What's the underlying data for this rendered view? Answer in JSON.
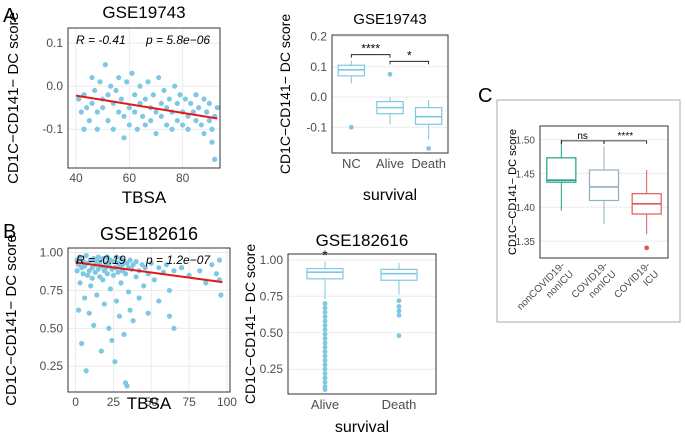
{
  "panel_labels": {
    "a": "A",
    "b": "B",
    "c": "C"
  },
  "colors": {
    "point": "#7EC8E3",
    "fit": "#E0191B",
    "grid": "#EBEBEB",
    "axis": "#333333",
    "box_blue": "#7EC8E3",
    "box_green": "#1FA187",
    "box_gray": "#8FB0C0",
    "box_red": "#E15759"
  },
  "chart_data": [
    {
      "id": "A1",
      "type": "scatter",
      "title": "GSE19743",
      "xlabel": "TBSA",
      "ylabel": "CD1C−CD141− DC score",
      "xlim": [
        37,
        94
      ],
      "ylim": [
        -0.19,
        0.135
      ],
      "xticks": [
        40,
        60,
        80
      ],
      "yticks": [
        -0.1,
        0.0,
        0.1
      ],
      "xtick_labels": [
        "40",
        "60",
        "80"
      ],
      "ytick_labels": [
        "-0.1",
        "0.0",
        "0.1"
      ],
      "stat_r": "R = -0.41",
      "stat_p": "p = 5.8e−06",
      "fit": {
        "x": [
          40,
          93
        ],
        "y": [
          -0.022,
          -0.075
        ]
      },
      "points": [
        [
          41,
          -0.03
        ],
        [
          42,
          -0.06
        ],
        [
          43,
          -0.1
        ],
        [
          43,
          -0.02
        ],
        [
          44,
          -0.05
        ],
        [
          45,
          -0.08
        ],
        [
          46,
          0.02
        ],
        [
          46,
          -0.04
        ],
        [
          47,
          -0.01
        ],
        [
          48,
          -0.06
        ],
        [
          48,
          -0.1
        ],
        [
          49,
          0.01
        ],
        [
          50,
          -0.03
        ],
        [
          50,
          -0.05
        ],
        [
          51,
          0.05
        ],
        [
          52,
          -0.02
        ],
        [
          52,
          -0.08
        ],
        [
          53,
          0.0
        ],
        [
          54,
          -0.04
        ],
        [
          54,
          -0.1
        ],
        [
          55,
          -0.01
        ],
        [
          56,
          0.02
        ],
        [
          56,
          -0.06
        ],
        [
          57,
          -0.03
        ],
        [
          58,
          -0.07
        ],
        [
          58,
          -0.12
        ],
        [
          59,
          0.01
        ],
        [
          60,
          -0.05
        ],
        [
          60,
          -0.09
        ],
        [
          61,
          0.03
        ],
        [
          62,
          -0.02
        ],
        [
          62,
          -0.06
        ],
        [
          63,
          -0.1
        ],
        [
          64,
          0.0
        ],
        [
          64,
          -0.04
        ],
        [
          65,
          -0.07
        ],
        [
          66,
          -0.03
        ],
        [
          66,
          -0.09
        ],
        [
          67,
          0.01
        ],
        [
          68,
          -0.05
        ],
        [
          68,
          -0.08
        ],
        [
          69,
          -0.02
        ],
        [
          70,
          -0.06
        ],
        [
          70,
          -0.11
        ],
        [
          71,
          0.02
        ],
        [
          72,
          -0.04
        ],
        [
          72,
          -0.07
        ],
        [
          73,
          -0.01
        ],
        [
          74,
          -0.05
        ],
        [
          74,
          -0.09
        ],
        [
          75,
          -0.03
        ],
        [
          76,
          -0.06
        ],
        [
          76,
          -0.1
        ],
        [
          77,
          0.0
        ],
        [
          78,
          -0.04
        ],
        [
          78,
          -0.08
        ],
        [
          79,
          -0.02
        ],
        [
          80,
          -0.06
        ],
        [
          80,
          -0.09
        ],
        [
          81,
          -0.03
        ],
        [
          82,
          -0.07
        ],
        [
          82,
          -0.1
        ],
        [
          83,
          -0.04
        ],
        [
          84,
          -0.06
        ],
        [
          85,
          -0.02
        ],
        [
          85,
          -0.08
        ],
        [
          86,
          -0.05
        ],
        [
          87,
          -0.09
        ],
        [
          88,
          -0.03
        ],
        [
          88,
          -0.11
        ],
        [
          89,
          -0.06
        ],
        [
          90,
          -0.08
        ],
        [
          90,
          -0.04
        ],
        [
          91,
          -0.1
        ],
        [
          91,
          -0.13
        ],
        [
          92,
          -0.07
        ],
        [
          92,
          -0.17
        ],
        [
          93,
          -0.05
        ]
      ]
    },
    {
      "id": "A2",
      "type": "box",
      "title": "GSE19743",
      "xlabel": "survival",
      "ylabel": "CD1C−CD141− DC score",
      "ylim": [
        -0.185,
        0.205
      ],
      "yticks": [
        -0.1,
        0.0,
        0.1,
        0.2
      ],
      "ytick_labels": [
        "-0.1",
        "0.0",
        "0.1",
        "0.2"
      ],
      "categories": [
        "NC",
        "Alive",
        "Death"
      ],
      "boxes": [
        {
          "min": 0.045,
          "q1": 0.07,
          "median": 0.09,
          "q3": 0.105,
          "max": 0.12,
          "outliers": [
            -0.1
          ]
        },
        {
          "min": -0.09,
          "q1": -0.055,
          "median": -0.035,
          "q3": -0.015,
          "max": 0.0,
          "outliers": [
            0.075
          ]
        },
        {
          "min": -0.14,
          "q1": -0.09,
          "median": -0.065,
          "q3": -0.035,
          "max": -0.01,
          "outliers": [
            -0.17
          ]
        }
      ],
      "brackets": [
        {
          "from": 0,
          "to": 1,
          "y": 0.14,
          "label": "****"
        },
        {
          "from": 1,
          "to": 2,
          "y": 0.118,
          "label": "*"
        }
      ]
    },
    {
      "id": "B1",
      "type": "scatter",
      "title": "GSE182616",
      "xlabel": "TBSA",
      "ylabel": "CD1C−CD141− DC score",
      "xlim": [
        -5,
        102
      ],
      "ylim": [
        0.08,
        1.03
      ],
      "xticks": [
        0,
        25,
        50,
        75,
        100
      ],
      "yticks": [
        0.25,
        0.5,
        0.75,
        1.0
      ],
      "xtick_labels": [
        "0",
        "25",
        "50",
        "75",
        "100"
      ],
      "ytick_labels": [
        "0.25",
        "0.50",
        "0.75",
        "1.00"
      ],
      "stat_r": "R = -0.19",
      "stat_p": "p = 1.2e−07",
      "fit": {
        "x": [
          0,
          97
        ],
        "y": [
          0.935,
          0.805
        ]
      },
      "points": [
        [
          1,
          0.95
        ],
        [
          1,
          0.88
        ],
        [
          2,
          0.92
        ],
        [
          2,
          0.62
        ],
        [
          3,
          0.97
        ],
        [
          3,
          0.8
        ],
        [
          4,
          0.9
        ],
        [
          4,
          0.4
        ],
        [
          5,
          0.86
        ],
        [
          5,
          0.94
        ],
        [
          6,
          0.91
        ],
        [
          6,
          0.7
        ],
        [
          7,
          0.98
        ],
        [
          7,
          0.22
        ],
        [
          8,
          0.85
        ],
        [
          8,
          0.93
        ],
        [
          9,
          0.88
        ],
        [
          9,
          0.6
        ],
        [
          10,
          0.95
        ],
        [
          10,
          0.78
        ],
        [
          11,
          0.9
        ],
        [
          11,
          0.83
        ],
        [
          12,
          0.96
        ],
        [
          12,
          0.52
        ],
        [
          13,
          0.87
        ],
        [
          13,
          0.92
        ],
        [
          14,
          0.94
        ],
        [
          14,
          0.72
        ],
        [
          15,
          0.89
        ],
        [
          15,
          0.97
        ],
        [
          16,
          0.84
        ],
        [
          16,
          0.93
        ],
        [
          17,
          0.91
        ],
        [
          17,
          0.35
        ],
        [
          18,
          0.96
        ],
        [
          18,
          0.82
        ],
        [
          19,
          0.88
        ],
        [
          19,
          0.66
        ],
        [
          20,
          0.93
        ],
        [
          20,
          0.9
        ],
        [
          21,
          0.86
        ],
        [
          21,
          0.97
        ],
        [
          22,
          0.92
        ],
        [
          22,
          0.5
        ],
        [
          23,
          0.95
        ],
        [
          23,
          0.76
        ],
        [
          24,
          0.89
        ],
        [
          24,
          0.42
        ],
        [
          25,
          0.94
        ],
        [
          25,
          0.85
        ],
        [
          26,
          0.9
        ],
        [
          26,
          0.28
        ],
        [
          27,
          0.97
        ],
        [
          27,
          0.68
        ],
        [
          28,
          0.87
        ],
        [
          28,
          0.93
        ],
        [
          29,
          0.91
        ],
        [
          29,
          0.58
        ],
        [
          30,
          0.96
        ],
        [
          30,
          0.8
        ],
        [
          31,
          0.88
        ],
        [
          31,
          0.92
        ],
        [
          32,
          0.94
        ],
        [
          32,
          0.46
        ],
        [
          33,
          0.86
        ],
        [
          33,
          0.14
        ],
        [
          34,
          0.93
        ],
        [
          34,
          0.12
        ],
        [
          35,
          0.9
        ],
        [
          35,
          0.74
        ],
        [
          36,
          0.95
        ],
        [
          36,
          0.62
        ],
        [
          37,
          0.89
        ],
        [
          38,
          0.92
        ],
        [
          38,
          0.55
        ],
        [
          40,
          0.94
        ],
        [
          40,
          0.84
        ],
        [
          42,
          0.88
        ],
        [
          42,
          0.7
        ],
        [
          44,
          0.92
        ],
        [
          45,
          0.78
        ],
        [
          46,
          0.9
        ],
        [
          48,
          0.86
        ],
        [
          48,
          0.6
        ],
        [
          50,
          0.93
        ],
        [
          52,
          0.82
        ],
        [
          55,
          0.9
        ],
        [
          55,
          0.68
        ],
        [
          58,
          0.87
        ],
        [
          60,
          0.92
        ],
        [
          62,
          0.75
        ],
        [
          62,
          0.58
        ],
        [
          65,
          0.88
        ],
        [
          65,
          0.5
        ],
        [
          70,
          0.9
        ],
        [
          75,
          0.85
        ],
        [
          82,
          0.88
        ],
        [
          86,
          0.8
        ],
        [
          90,
          0.92
        ],
        [
          93,
          0.86
        ],
        [
          95,
          0.95
        ],
        [
          95,
          0.82
        ],
        [
          96,
          0.72
        ]
      ]
    },
    {
      "id": "B2",
      "type": "box",
      "title": "GSE182616",
      "xlabel": "survival",
      "ylabel": "CD1C−CD141− DC score",
      "ylim": [
        0.08,
        1.04
      ],
      "yticks": [
        0.25,
        0.5,
        0.75,
        1.0
      ],
      "ytick_labels": [
        "0.25",
        "0.50",
        "0.75",
        "1.00"
      ],
      "categories": [
        "Alive",
        "Death"
      ],
      "boxes": [
        {
          "min": 0.73,
          "q1": 0.87,
          "median": 0.915,
          "q3": 0.94,
          "max": 0.99,
          "outliers": [
            0.7,
            0.67,
            0.64,
            0.61,
            0.58,
            0.55,
            0.52,
            0.49,
            0.46,
            0.43,
            0.4,
            0.37,
            0.34,
            0.31,
            0.28,
            0.25,
            0.22,
            0.19,
            0.16,
            0.13,
            0.11
          ]
        },
        {
          "min": 0.76,
          "q1": 0.86,
          "median": 0.905,
          "q3": 0.935,
          "max": 0.98,
          "outliers": [
            0.72,
            0.68,
            0.65,
            0.62,
            0.48
          ]
        }
      ],
      "brackets": [],
      "star": {
        "x": 0,
        "y": 1.0,
        "label": "*"
      }
    },
    {
      "id": "C",
      "type": "box",
      "title": "",
      "xlabel": "",
      "ylabel": "CD1C−CD141− DC score",
      "ylim": [
        1.325,
        1.52
      ],
      "yticks": [
        1.35,
        1.4,
        1.45,
        1.5
      ],
      "ytick_labels": [
        "1.35",
        "1.40",
        "1.45",
        "1.50"
      ],
      "categories": [
        "nonCOVID19-nonICU",
        "COVID19-nonICU",
        "COVID19-ICU"
      ],
      "category_lines": [
        [
          "nonCOVID19-",
          "nonICU"
        ],
        [
          "COVID19-",
          "nonICU"
        ],
        [
          "COVID19-",
          "ICU"
        ]
      ],
      "boxes": [
        {
          "min": 1.395,
          "q1": 1.437,
          "median": 1.44,
          "q3": 1.473,
          "max": 1.5,
          "outliers": []
        },
        {
          "min": 1.375,
          "q1": 1.41,
          "median": 1.43,
          "q3": 1.455,
          "max": 1.49,
          "outliers": []
        },
        {
          "min": 1.36,
          "q1": 1.39,
          "median": 1.405,
          "q3": 1.42,
          "max": 1.455,
          "outliers": [
            1.34
          ]
        }
      ],
      "brackets": [
        {
          "from": 0,
          "to": 1,
          "y": 1.498,
          "label": "ns"
        },
        {
          "from": 1,
          "to": 2,
          "y": 1.498,
          "label": "****"
        }
      ]
    }
  ]
}
